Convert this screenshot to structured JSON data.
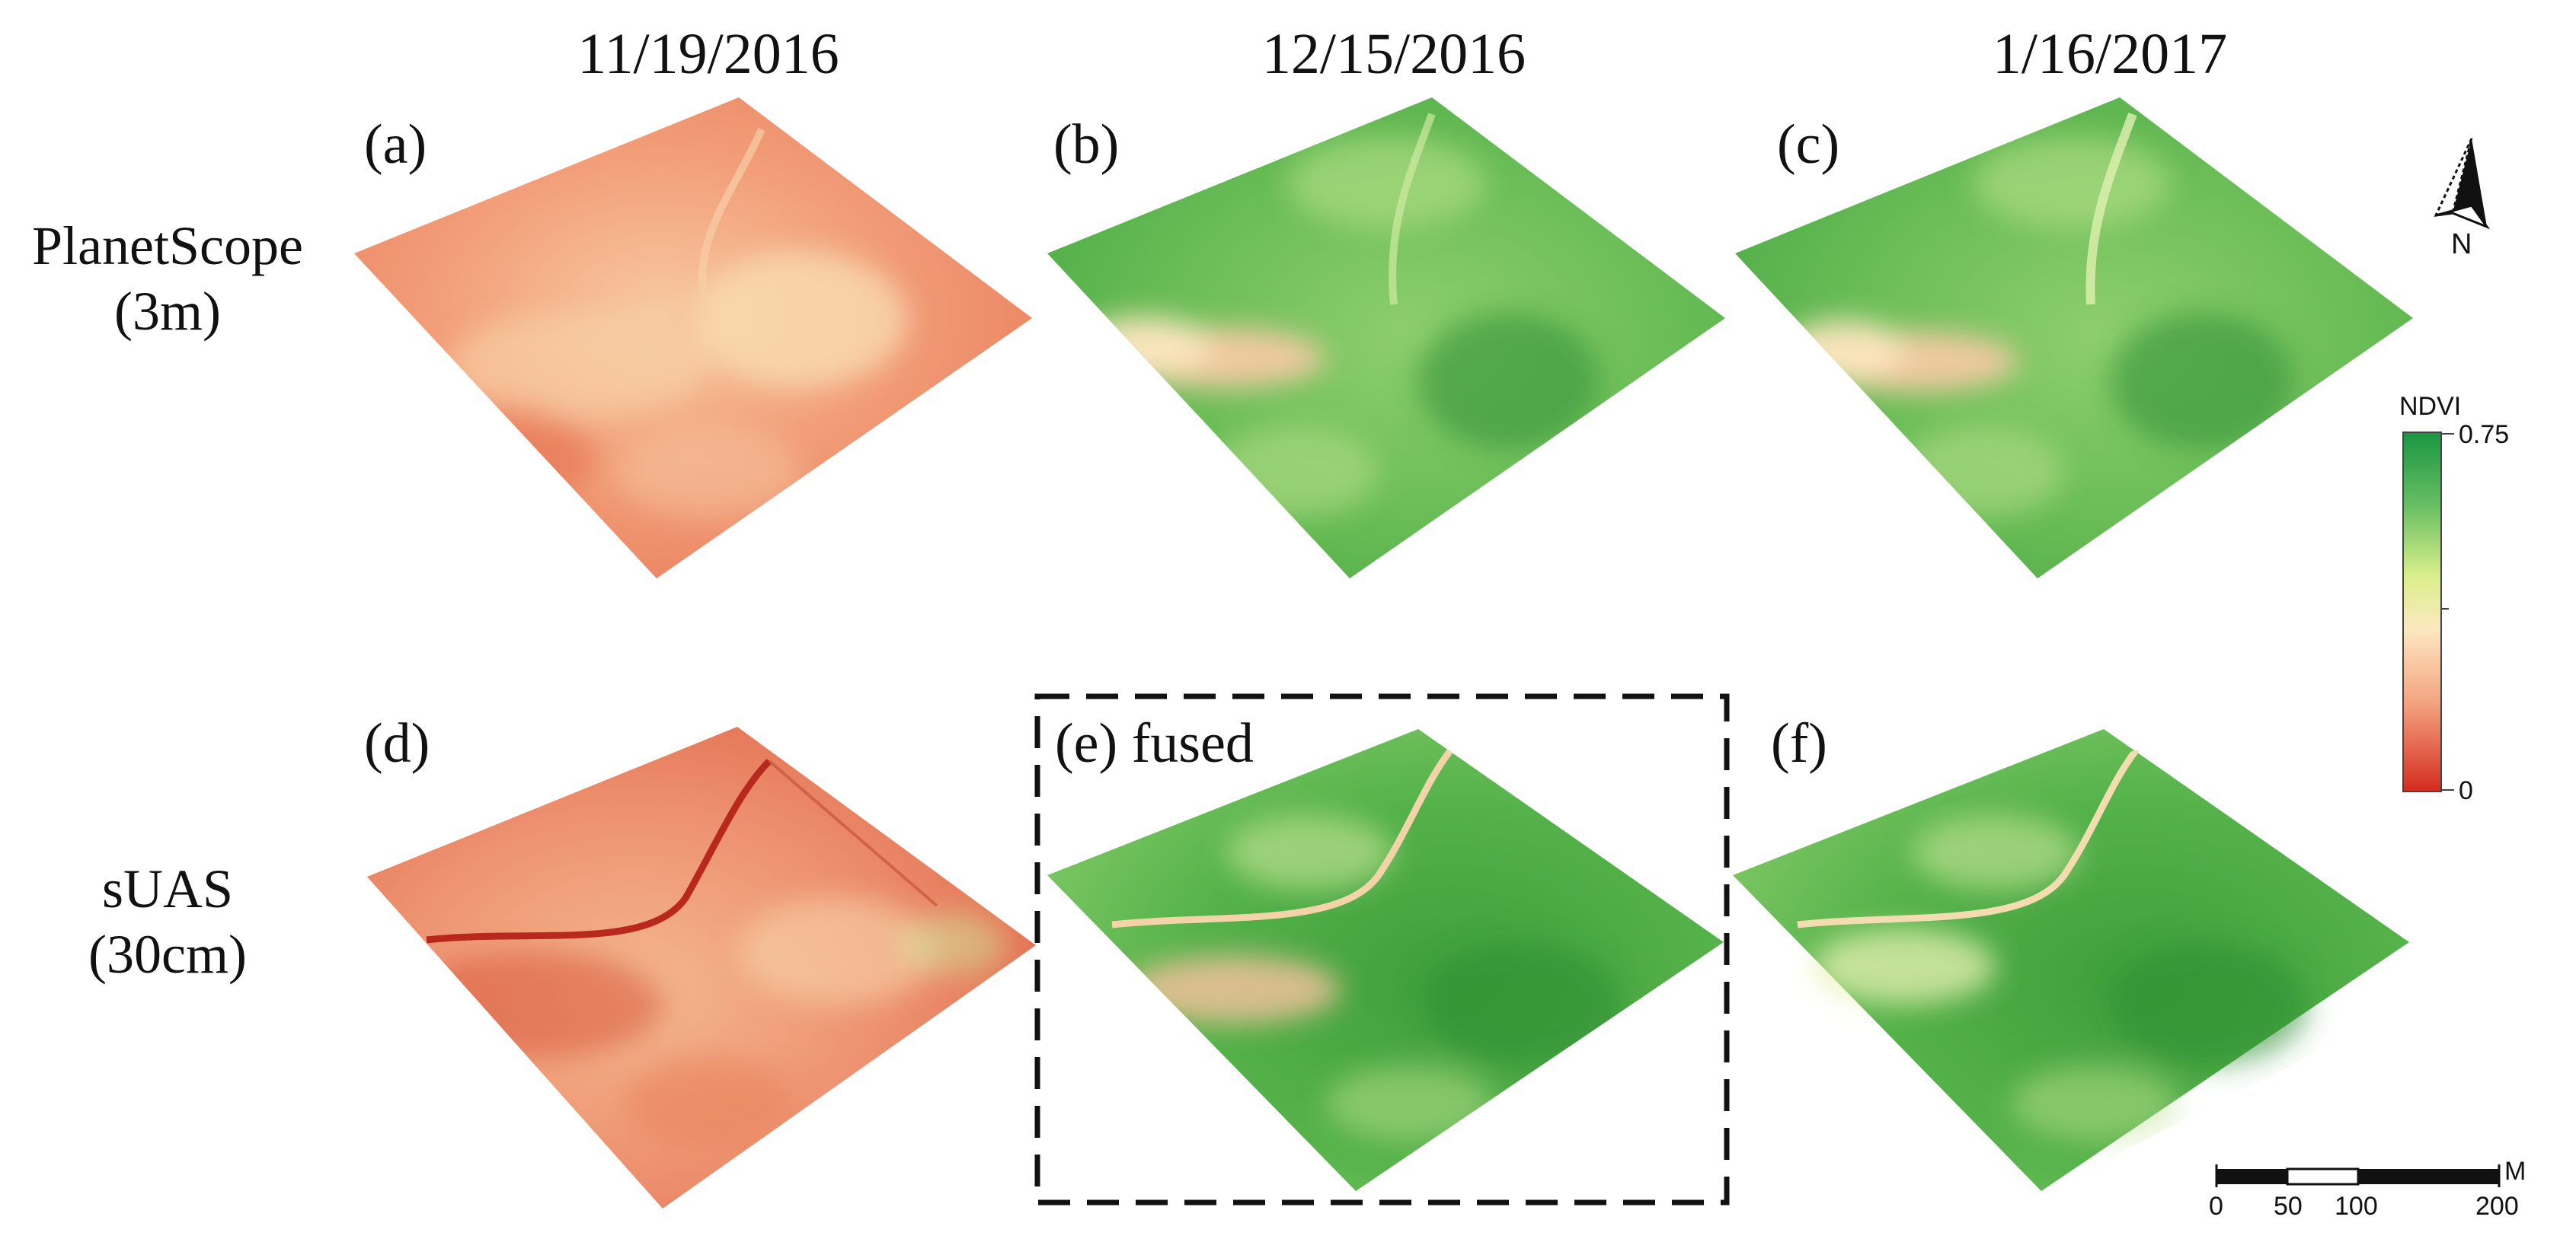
{
  "figure": {
    "dates": [
      "11/19/2016",
      "12/15/2016",
      "1/16/2017"
    ],
    "rows": [
      {
        "label_line1": "PlanetScope",
        "label_line2": "(3m)"
      },
      {
        "label_line1": "sUAS",
        "label_line2": "(30cm)"
      }
    ],
    "panels": [
      {
        "label": "(a)",
        "mean_ndvi_level": 0.16
      },
      {
        "label": "(b)",
        "mean_ndvi_level": 0.55
      },
      {
        "label": "(c)",
        "mean_ndvi_level": 0.55
      },
      {
        "label": "(d)",
        "mean_ndvi_level": 0.17
      },
      {
        "label": "(e) fused",
        "mean_ndvi_level": 0.6,
        "highlighted": true
      },
      {
        "label": "(f)",
        "mean_ndvi_level": 0.6
      }
    ],
    "north_arrow": {
      "label": "N",
      "icon": "north-arrow-icon"
    },
    "legend": {
      "title": "NDVI",
      "max_label": "0.75",
      "min_label": "0",
      "colors": [
        "#d42b1e",
        "#f4a582",
        "#fde7c0",
        "#d9ef8b",
        "#66bd63",
        "#1a9641"
      ]
    },
    "scale_bar": {
      "unit": "M",
      "ticks": [
        "0",
        "50",
        "100",
        "200"
      ]
    }
  }
}
